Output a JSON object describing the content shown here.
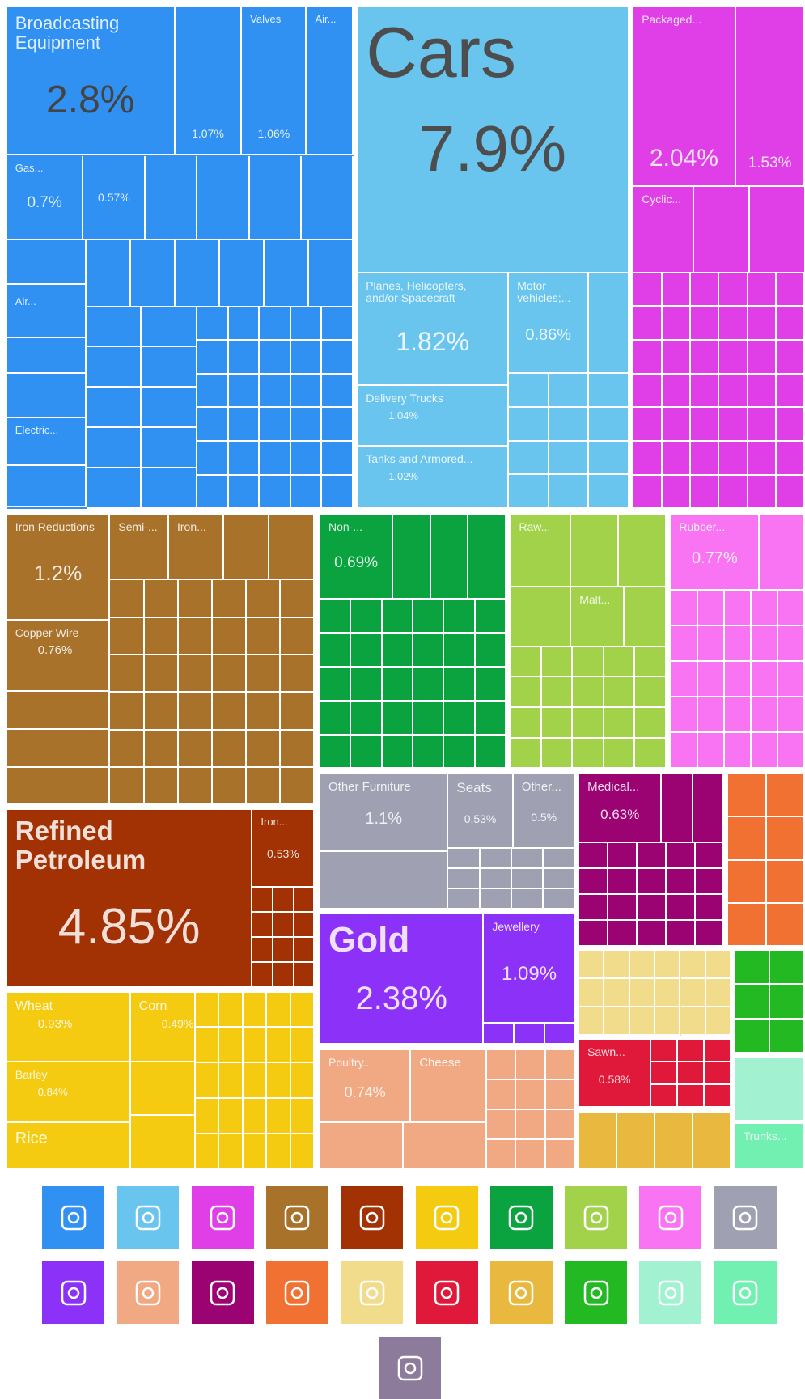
{
  "chart_data": {
    "type": "treemap",
    "sectors": [
      {
        "color": "#3191f2",
        "items": [
          {
            "name": "Broadcasting Equipment",
            "value": 2.8,
            "value_label": "2.8%"
          },
          {
            "value": 1.07,
            "value_label": "1.07%"
          },
          {
            "name": "Valves",
            "value": 1.06,
            "value_label": "1.06%"
          },
          {
            "name": "Air..."
          },
          {
            "name": "Gas...",
            "value": 0.7,
            "value_label": "0.7%"
          },
          {
            "value": 0.57,
            "value_label": "0.57%"
          },
          {
            "name": "Air..."
          },
          {
            "name": "Electric..."
          }
        ]
      },
      {
        "color": "#69c4ee",
        "items": [
          {
            "name": "Cars",
            "value": 7.9,
            "value_label": "7.9%"
          },
          {
            "name": "Planes, Helicopters, and/or Spacecraft",
            "value": 1.82,
            "value_label": "1.82%"
          },
          {
            "name": "Motor vehicles;...",
            "value": 0.86,
            "value_label": "0.86%"
          },
          {
            "name": "Delivery Trucks",
            "value": 1.04,
            "value_label": "1.04%"
          },
          {
            "name": "Tanks and Armored...",
            "value": 1.02,
            "value_label": "1.02%"
          }
        ]
      },
      {
        "color": "#e03fe8",
        "items": [
          {
            "name": "Packaged...",
            "value": 2.04,
            "value_label": "2.04%"
          },
          {
            "value": 1.53,
            "value_label": "1.53%"
          },
          {
            "name": "Cyclic..."
          }
        ]
      },
      {
        "color": "#a8722b",
        "items": [
          {
            "name": "Iron Reductions",
            "value": 1.2,
            "value_label": "1.2%"
          },
          {
            "name": "Copper Wire",
            "value": 0.76,
            "value_label": "0.76%"
          },
          {
            "name": "Semi-..."
          },
          {
            "name": "Iron..."
          }
        ]
      },
      {
        "color": "#a23203",
        "items": [
          {
            "name": "Refined Petroleum",
            "value": 4.85,
            "value_label": "4.85%"
          },
          {
            "name": "Iron...",
            "value": 0.53,
            "value_label": "0.53%"
          }
        ]
      },
      {
        "color": "#f5cb12",
        "items": [
          {
            "name": "Wheat",
            "value": 0.93,
            "value_label": "0.93%"
          },
          {
            "name": "Corn",
            "value": 0.49,
            "value_label": "0.49%"
          },
          {
            "name": "Barley",
            "value": 0.84,
            "value_label": "0.84%"
          },
          {
            "name": "Rice"
          }
        ]
      },
      {
        "color": "#0ba340",
        "items": [
          {
            "name": "Non-...",
            "value": 0.69,
            "value_label": "0.69%"
          }
        ]
      },
      {
        "color": "#a2d24a",
        "items": [
          {
            "name": "Raw..."
          },
          {
            "name": "Malt..."
          }
        ]
      },
      {
        "color": "#f874f2",
        "items": [
          {
            "name": "Rubber...",
            "value": 0.77,
            "value_label": "0.77%"
          }
        ]
      },
      {
        "color": "#9fa1b2",
        "items": [
          {
            "name": "Other Furniture",
            "value": 1.1,
            "value_label": "1.1%"
          },
          {
            "name": "Seats",
            "value": 0.53,
            "value_label": "0.53%"
          },
          {
            "name": "Other...",
            "value": 0.5,
            "value_label": "0.5%"
          }
        ]
      },
      {
        "color": "#8b31f8",
        "items": [
          {
            "name": "Gold",
            "value": 2.38,
            "value_label": "2.38%"
          },
          {
            "name": "Jewellery",
            "value": 1.09,
            "value_label": "1.09%"
          }
        ]
      },
      {
        "color": "#f1a983",
        "items": [
          {
            "name": "Poultry...",
            "value": 0.74,
            "value_label": "0.74%"
          },
          {
            "name": "Cheese"
          }
        ]
      },
      {
        "color": "#9b0272",
        "items": [
          {
            "name": "Medical...",
            "value": 0.63,
            "value_label": "0.63%"
          }
        ]
      },
      {
        "color": "#f07131",
        "items": []
      },
      {
        "color": "#f0dc8a",
        "items": []
      },
      {
        "color": "#e0193a",
        "items": [
          {
            "name": "Sawn...",
            "value": 0.58,
            "value_label": "0.58%"
          }
        ]
      },
      {
        "color": "#e9b83f",
        "items": []
      },
      {
        "color": "#22b922",
        "items": []
      },
      {
        "color": "#a2f2d2",
        "items": []
      },
      {
        "color": "#72f0b2",
        "items": [
          {
            "name": "Trunks..."
          }
        ]
      }
    ]
  }
}
